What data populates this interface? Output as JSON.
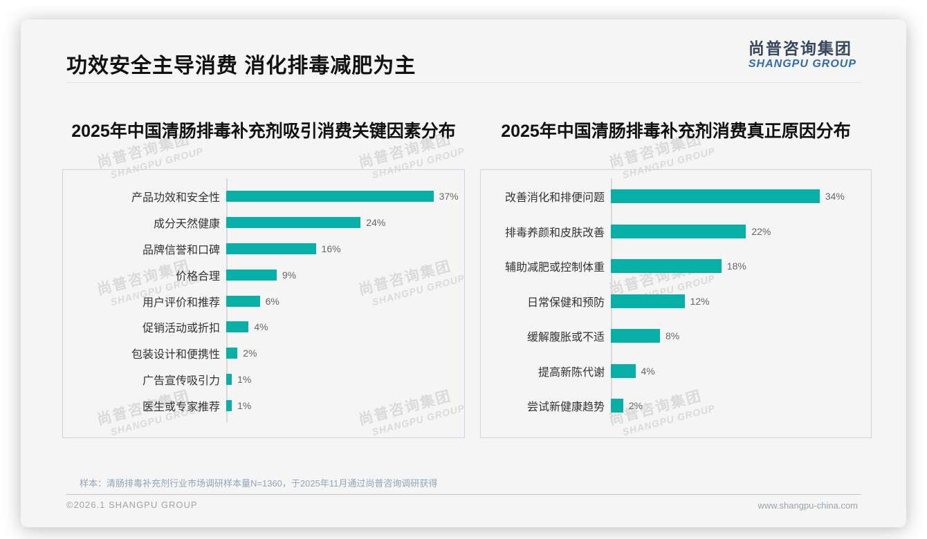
{
  "slide": {
    "title": "功效安全主导消费 消化排毒减肥为主",
    "logo": {
      "cn": "尚普咨询集团",
      "en": "SHANGPU GROUP"
    },
    "watermark": {
      "cn": "尚普咨询集团",
      "en": "SHANGPU GROUP"
    },
    "note": "样本：清肠排毒补充剂行业市场调研样本量N=1360，于2025年11月通过尚普咨询调研获得",
    "footer_left": "©2026.1 SHANGPU GROUP",
    "footer_right": "www.shangpu-china.com"
  },
  "colors": {
    "bar_teal": "#08afa7",
    "logo_dark": "#36465c",
    "logo_blue": "#2e6cae",
    "panel_border": "#c7d6e2",
    "note_blue_gray": "#8fa6bb"
  },
  "chart_data": [
    {
      "type": "bar",
      "orientation": "horizontal",
      "title": "2025年中国清肠排毒补充剂吸引消费关键因素分布",
      "categories": [
        "产品功效和安全性",
        "成分天然健康",
        "品牌信誉和口碑",
        "价格合理",
        "用户评价和推荐",
        "促销活动或折扣",
        "包装设计和便携性",
        "广告宣传吸引力",
        "医生或专家推荐"
      ],
      "values": [
        37,
        24,
        16,
        9,
        6,
        4,
        2,
        1,
        1
      ],
      "unit": "%",
      "xlim": [
        0,
        41
      ],
      "grid": false,
      "legend": false,
      "bar_color": "#08afa7"
    },
    {
      "type": "bar",
      "orientation": "horizontal",
      "title": "2025年中国清肠排毒补充剂消费真正原因分布",
      "categories": [
        "改善消化和排便问题",
        "排毒养颜和皮肤改善",
        "辅助减肥或控制体重",
        "日常保健和预防",
        "缓解腹胀或不适",
        "提高新陈代谢",
        "尝试新健康趋势"
      ],
      "values": [
        34,
        22,
        18,
        12,
        8,
        4,
        2
      ],
      "unit": "%",
      "xlim": [
        0,
        41
      ],
      "grid": false,
      "legend": false,
      "bar_color": "#08afa7"
    }
  ]
}
